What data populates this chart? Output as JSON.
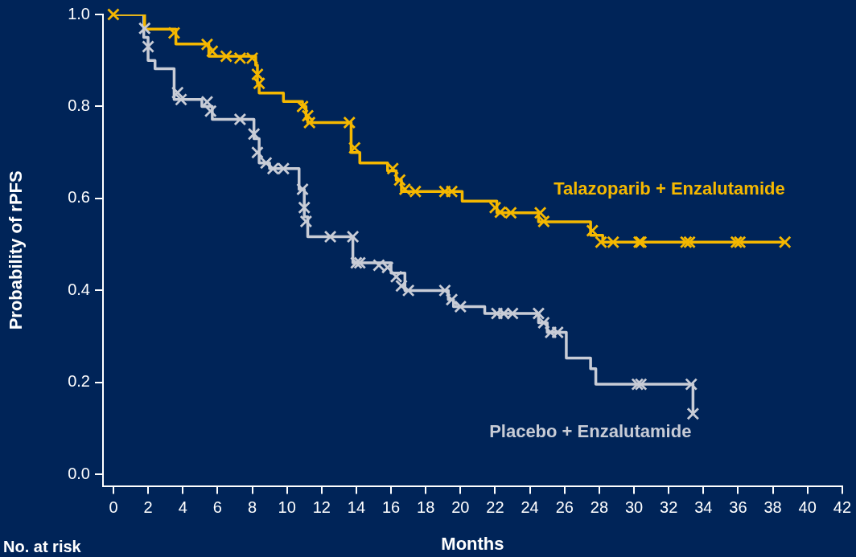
{
  "chart_data": {
    "type": "step",
    "xlabel": "Months",
    "ylabel": "Probability of rPFS",
    "xlim": [
      -0.6,
      42
    ],
    "ylim": [
      -0.025,
      1.0
    ],
    "xticks": [
      0,
      2,
      4,
      6,
      8,
      10,
      12,
      14,
      16,
      18,
      20,
      22,
      24,
      26,
      28,
      30,
      32,
      34,
      36,
      38,
      40,
      42
    ],
    "yticks": [
      {
        "value": 0,
        "label": "0.0"
      },
      {
        "value": 0.2,
        "label": "0.2"
      },
      {
        "value": 0.4,
        "label": "0.4"
      },
      {
        "value": 0.6,
        "label": "0.6"
      },
      {
        "value": 0.8,
        "label": "0.8"
      },
      {
        "value": 1,
        "label": "1.0"
      }
    ],
    "grid": false,
    "legend": false,
    "marker": "none",
    "line_style": "solid",
    "annotations": [
      "No. at risk"
    ],
    "series": [
      {
        "name": "Talazoparib + Enzalutamide",
        "type": "step",
        "color": "#f5b800",
        "x": [
          0,
          1.8,
          3.6,
          5.5,
          8.2,
          8.3,
          8.4,
          9.8,
          10.9,
          11.1,
          11.2,
          13.7,
          14.2,
          15.8,
          16.3,
          16.6,
          20.1,
          22.1,
          24.5,
          27.5,
          28.2,
          38.7
        ],
        "values": [
          1,
          0.968,
          0.936,
          0.909,
          0.89,
          0.85,
          0.829,
          0.811,
          0.8,
          0.78,
          0.765,
          0.7,
          0.677,
          0.66,
          0.64,
          0.615,
          0.594,
          0.569,
          0.549,
          0.52,
          0.505,
          0.505
        ]
      },
      {
        "name": "Placebo + Enzalutamide",
        "type": "step",
        "color": "#c8ccd6",
        "x": [
          0,
          1.75,
          2.0,
          2.4,
          3.5,
          5.1,
          5.7,
          8.1,
          8.4,
          9.0,
          10.7,
          11.0,
          11.2,
          13.8,
          16.0,
          16.8,
          19.3,
          19.6,
          21.4,
          24.5,
          25.0,
          26.1,
          27.5,
          27.8,
          33.3,
          33.4
        ],
        "values": [
          1,
          0.95,
          0.9,
          0.882,
          0.815,
          0.8,
          0.772,
          0.73,
          0.677,
          0.665,
          0.62,
          0.56,
          0.517,
          0.46,
          0.438,
          0.4,
          0.38,
          0.365,
          0.35,
          0.33,
          0.309,
          0.253,
          0.23,
          0.196,
          0.196,
          0.132
        ]
      },
      {
        "type": "scatter",
        "marker": "cross",
        "color": "#f5b800",
        "x": [
          0,
          3.5,
          5.4,
          5.7,
          6.5,
          7.3,
          8.0,
          8.3,
          8.4,
          10.9,
          11.2,
          11.3,
          13.6,
          13.9,
          16.1,
          16.5,
          16.8,
          17.4,
          19.1,
          19.5,
          22.0,
          22.3,
          22.9,
          24.6,
          24.8,
          27.6,
          28.1,
          28.8,
          30.3,
          30.4,
          33.0,
          33.2,
          35.9,
          36.1,
          38.7
        ],
        "values": [
          1,
          0.96,
          0.935,
          0.92,
          0.909,
          0.905,
          0.905,
          0.87,
          0.85,
          0.8,
          0.78,
          0.765,
          0.765,
          0.71,
          0.665,
          0.64,
          0.62,
          0.615,
          0.615,
          0.615,
          0.58,
          0.57,
          0.569,
          0.569,
          0.55,
          0.53,
          0.505,
          0.505,
          0.505,
          0.505,
          0.505,
          0.505,
          0.505,
          0.505,
          0.505
        ]
      },
      {
        "type": "scatter",
        "marker": "cross",
        "color": "#c8ccd6",
        "x": [
          1.8,
          2.0,
          3.7,
          3.9,
          5.4,
          5.6,
          7.3,
          8.1,
          8.3,
          8.8,
          9.2,
          9.8,
          10.9,
          11.0,
          11.1,
          12.5,
          13.8,
          14.0,
          14.2,
          15.3,
          15.8,
          16.3,
          16.6,
          17.0,
          19.1,
          19.5,
          20.0,
          22.1,
          22.5,
          23.0,
          24.5,
          24.8,
          25.2,
          25.6,
          30.2,
          30.4,
          33.3,
          33.4
        ],
        "values": [
          0.97,
          0.93,
          0.83,
          0.815,
          0.81,
          0.79,
          0.772,
          0.74,
          0.7,
          0.677,
          0.665,
          0.665,
          0.62,
          0.58,
          0.55,
          0.517,
          0.517,
          0.46,
          0.46,
          0.455,
          0.45,
          0.43,
          0.41,
          0.4,
          0.4,
          0.38,
          0.365,
          0.35,
          0.35,
          0.35,
          0.35,
          0.33,
          0.309,
          0.309,
          0.196,
          0.196,
          0.196,
          0.132
        ]
      }
    ]
  }
}
